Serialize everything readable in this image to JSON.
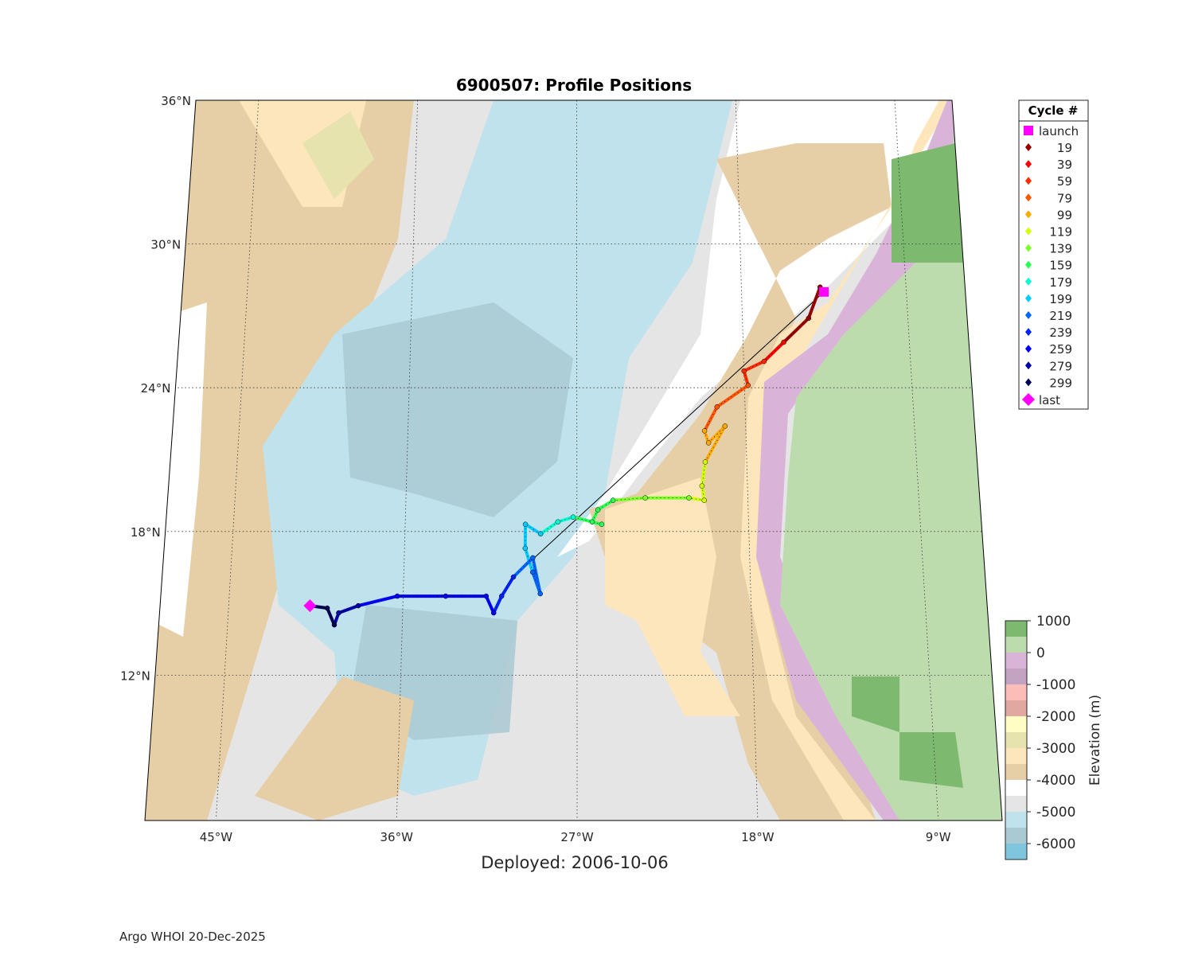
{
  "title": "6900507: Profile Positions",
  "subtitle": "Deployed: 2006-10-06",
  "footer": "Argo WHOI 20-Dec-2025",
  "chart_data": {
    "type": "scatter",
    "title": "6900507: Profile Positions",
    "xlabel": "Deployed: 2006-10-06",
    "lon_ticks": [
      {
        "v": -45,
        "label": "45°W"
      },
      {
        "v": -36,
        "label": "36°W"
      },
      {
        "v": -27,
        "label": "27°W"
      },
      {
        "v": -18,
        "label": "18°W"
      },
      {
        "v": -9,
        "label": "9°W"
      }
    ],
    "lat_ticks": [
      {
        "v": 36,
        "label": "36°N"
      },
      {
        "v": 30,
        "label": "30°N"
      },
      {
        "v": 24,
        "label": "24°N"
      },
      {
        "v": 18,
        "label": "18°N"
      },
      {
        "v": 12,
        "label": "12°N"
      }
    ],
    "lon_range": [
      -49,
      -6
    ],
    "lat_range": [
      6,
      36.3
    ],
    "grid": true,
    "legend": {
      "title": "Cycle #",
      "position": "top-right",
      "launch_label": "launch",
      "last_label": "last",
      "launch_color": "#ff00ff",
      "last_color": "#ff00ff",
      "entries": [
        {
          "label": "19",
          "color": "#990000"
        },
        {
          "label": "39",
          "color": "#ff0000"
        },
        {
          "label": "59",
          "color": "#ff2a00"
        },
        {
          "label": "79",
          "color": "#ff5500"
        },
        {
          "label": "99",
          "color": "#ffaa00"
        },
        {
          "label": "119",
          "color": "#d4ff00"
        },
        {
          "label": "139",
          "color": "#7fff2a"
        },
        {
          "label": "159",
          "color": "#2aff55"
        },
        {
          "label": "179",
          "color": "#00ffd4"
        },
        {
          "label": "199",
          "color": "#00ccff"
        },
        {
          "label": "219",
          "color": "#0066ff"
        },
        {
          "label": "239",
          "color": "#0022ff"
        },
        {
          "label": "259",
          "color": "#0000ff"
        },
        {
          "label": "279",
          "color": "#0000aa"
        },
        {
          "label": "299",
          "color": "#000055"
        }
      ]
    },
    "launch": {
      "lon": -13.5,
      "lat": 28.0
    },
    "last": {
      "lon": -40.8,
      "lat": 14.9
    },
    "track": [
      [
        -13.7,
        28.2,
        0
      ],
      [
        -14.4,
        26.9,
        0
      ],
      [
        -15.8,
        25.9,
        1
      ],
      [
        -16.9,
        25.1,
        2
      ],
      [
        -18.0,
        24.7,
        2
      ],
      [
        -17.8,
        24.1,
        3
      ],
      [
        -19.5,
        23.2,
        3
      ],
      [
        -20.2,
        22.2,
        4
      ],
      [
        -20.0,
        21.7,
        4
      ],
      [
        -19.1,
        22.4,
        4
      ],
      [
        -20.2,
        20.9,
        5
      ],
      [
        -20.4,
        19.9,
        5
      ],
      [
        -20.3,
        19.3,
        5
      ],
      [
        -21.1,
        19.4,
        6
      ],
      [
        -23.4,
        19.4,
        6
      ],
      [
        -25.1,
        19.3,
        7
      ],
      [
        -25.9,
        18.9,
        7
      ],
      [
        -26.2,
        18.4,
        7
      ],
      [
        -25.7,
        18.3,
        7
      ],
      [
        -27.2,
        18.6,
        8
      ],
      [
        -28.0,
        18.4,
        8
      ],
      [
        -28.9,
        17.9,
        9
      ],
      [
        -29.7,
        18.3,
        9
      ],
      [
        -29.7,
        17.3,
        9
      ],
      [
        -29.3,
        16.3,
        10
      ],
      [
        -28.9,
        15.4,
        10
      ],
      [
        -29.3,
        16.9,
        10
      ],
      [
        -30.3,
        16.1,
        11
      ],
      [
        -30.9,
        15.3,
        11
      ],
      [
        -31.3,
        14.6,
        12
      ],
      [
        -31.7,
        15.3,
        12
      ],
      [
        -33.8,
        15.3,
        12
      ],
      [
        -36.3,
        15.3,
        12
      ],
      [
        -38.3,
        14.9,
        13
      ],
      [
        -39.3,
        14.6,
        13
      ],
      [
        -39.5,
        14.1,
        14
      ],
      [
        -39.9,
        14.8,
        14
      ],
      [
        -40.8,
        14.9,
        14
      ]
    ],
    "colorbar": {
      "label": "Elevation (m)",
      "ticks": [
        "1000",
        "0",
        "-1000",
        "-2000",
        "-3000",
        "-4000",
        "-5000",
        "-6000"
      ],
      "range": [
        -6500,
        1000
      ],
      "step": 500,
      "colors": [
        "#7db96e",
        "#bcdcae",
        "#dab4d8",
        "#c4a3c2",
        "#fbbdb7",
        "#e1a8a2",
        "#fffcc4",
        "#e6e3ae",
        "#fde6bc",
        "#e6cfa6",
        "#ffffff",
        "#e5e5e5",
        "#bfe2ec",
        "#a9c9d3",
        "#7fc5dd"
      ]
    }
  }
}
